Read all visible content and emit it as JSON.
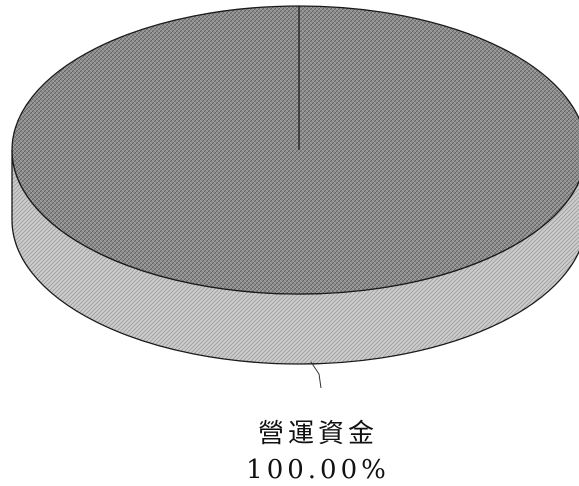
{
  "chart_data": {
    "type": "pie",
    "style": "3d",
    "categories": [
      "營運資金"
    ],
    "values": [
      100.0
    ],
    "data_labels": [
      {
        "name": "營運資金",
        "percent": "100.00%"
      }
    ],
    "title": "",
    "legend": "none",
    "colors": {
      "top": "#8a8a8a",
      "side": "#c2c2c2",
      "outline": "#1a1a1a"
    }
  }
}
